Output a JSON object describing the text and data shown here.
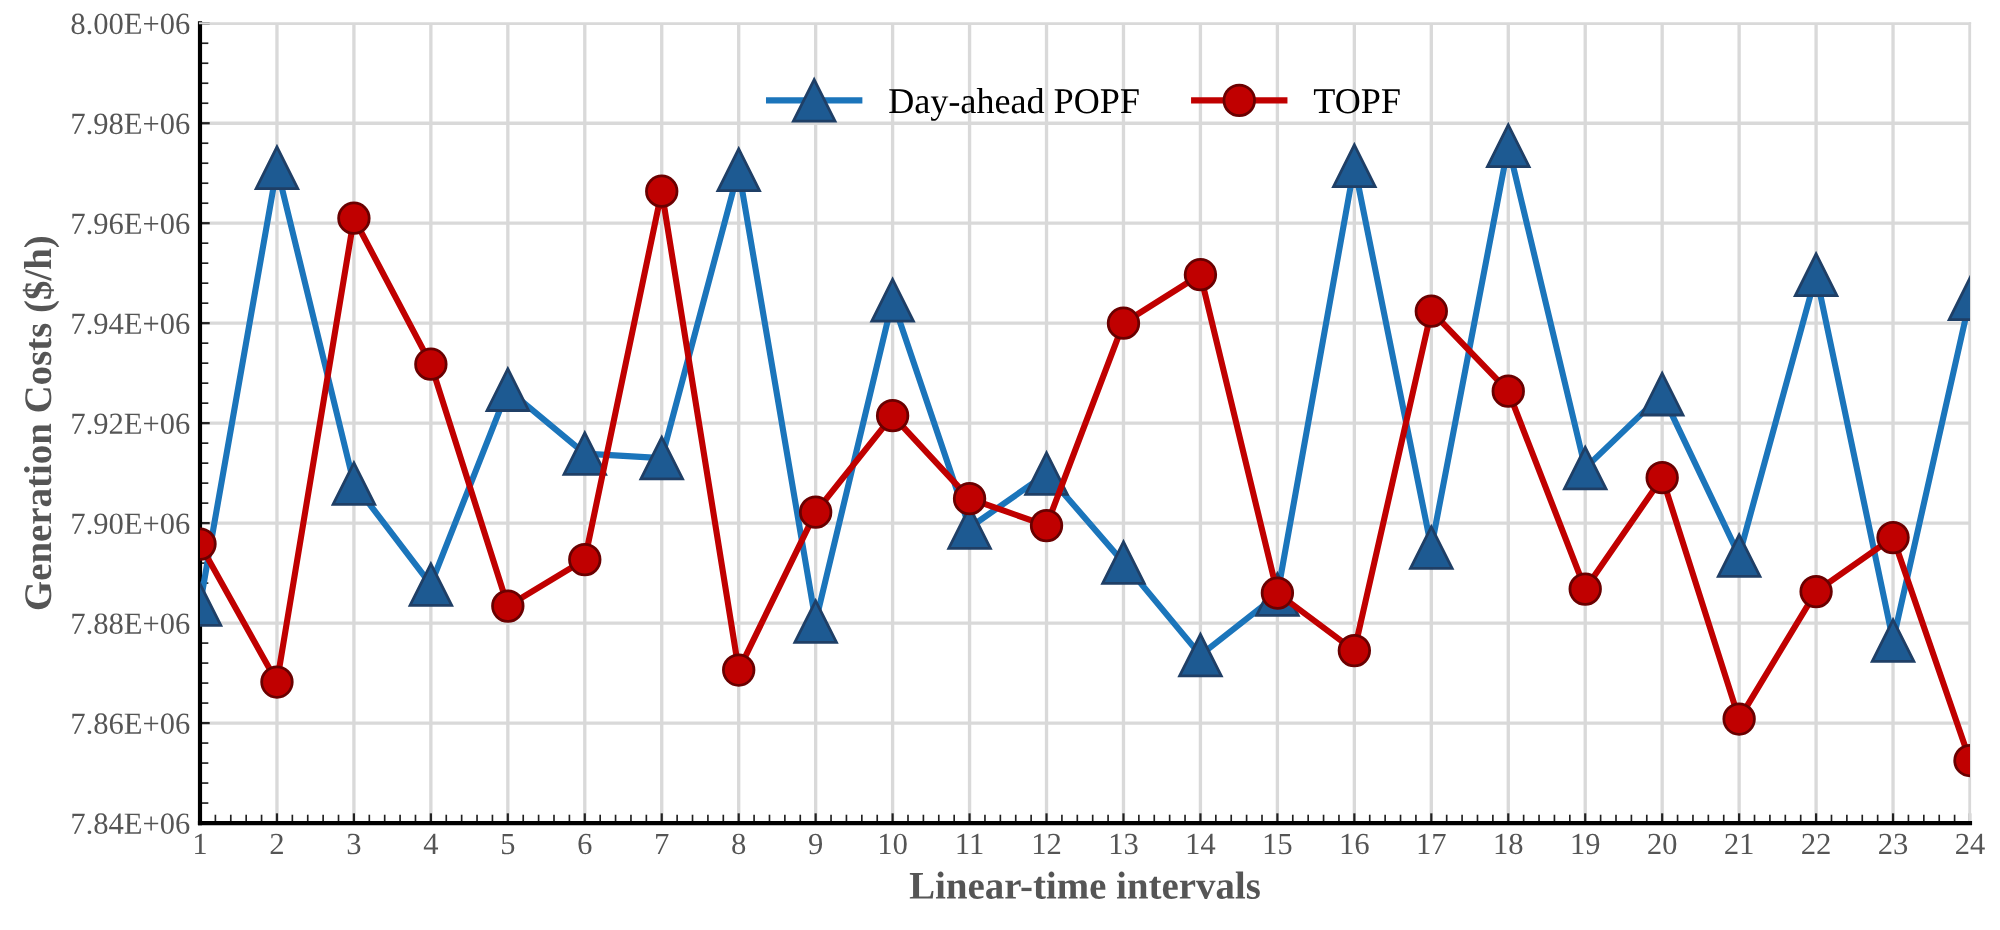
{
  "chart_data": {
    "type": "line",
    "xlabel": "Linear-time intervals",
    "ylabel": "Generation Costs ($/h)",
    "x": [
      1,
      2,
      3,
      4,
      5,
      6,
      7,
      8,
      9,
      10,
      11,
      12,
      13,
      14,
      15,
      16,
      17,
      18,
      19,
      20,
      21,
      22,
      23,
      24
    ],
    "series": [
      {
        "name": "Day-ahead POPF",
        "color": "#1b75bb",
        "marker": "triangle",
        "values": [
          7883700,
          7971100,
          7907900,
          7887700,
          7926700,
          7913900,
          7913000,
          7970700,
          7880300,
          7944600,
          7899100,
          7909900,
          7892100,
          7873600,
          7885700,
          7971500,
          7895100,
          7975500,
          7911000,
          7925800,
          7893500,
          7949700,
          7876500,
          7944900
        ]
      },
      {
        "name": "TOPF",
        "color": "#c00000",
        "marker": "circle",
        "values": [
          7895800,
          7868200,
          7961000,
          7931800,
          7883400,
          7892700,
          7966400,
          7870600,
          7902200,
          7921500,
          7904900,
          7899500,
          7940000,
          7949700,
          7886000,
          7874500,
          7942400,
          7926400,
          7886800,
          7909100,
          7860800,
          7886300,
          7897100,
          7852500
        ]
      }
    ],
    "xlim": [
      1,
      24
    ],
    "xticks": [
      1,
      2,
      3,
      4,
      5,
      6,
      7,
      8,
      9,
      10,
      11,
      12,
      13,
      14,
      15,
      16,
      17,
      18,
      19,
      20,
      21,
      22,
      23,
      24
    ],
    "ylim": [
      7840000,
      8000000
    ],
    "yticks": [
      {
        "value": 7840000,
        "label": "7.84E+06"
      },
      {
        "value": 7860000,
        "label": "7.86E+06"
      },
      {
        "value": 7880000,
        "label": "7.88E+06"
      },
      {
        "value": 7900000,
        "label": "7.90E+06"
      },
      {
        "value": 7920000,
        "label": "7.92E+06"
      },
      {
        "value": 7940000,
        "label": "7.94E+06"
      },
      {
        "value": 7960000,
        "label": "7.96E+06"
      },
      {
        "value": 7980000,
        "label": "7.98E+06"
      },
      {
        "value": 8000000,
        "label": "8.00E+06"
      }
    ],
    "grid": true,
    "legend": "top",
    "line_style": "solid"
  }
}
